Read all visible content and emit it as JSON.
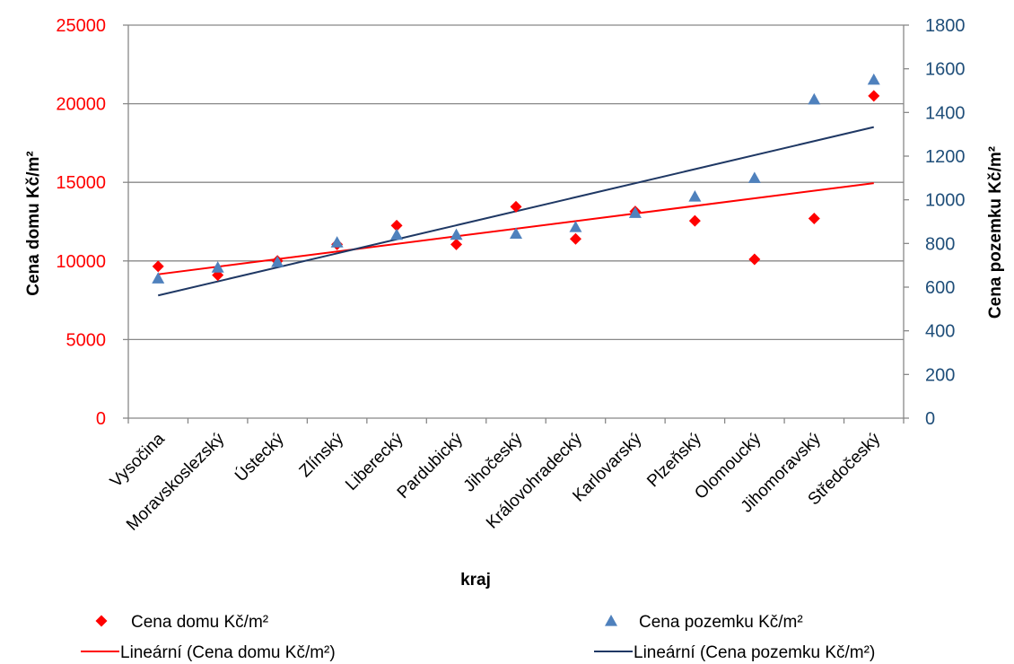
{
  "chart_data": {
    "type": "scatter",
    "categories": [
      "Vysočina",
      "Moravskoslezský",
      "Ústecký",
      "Zlínský",
      "Liberecký",
      "Pardubický",
      "Jihočeský",
      "Královohradecký",
      "Karlovarský",
      "Plzeňský",
      "Olomoucký",
      "Jihomoravský",
      "Středočeský"
    ],
    "xlabel": "kraj",
    "ylabel_left": "Cena domu Kč/m²",
    "ylabel_right": "Cena pozemku Kč/m²",
    "ylim_left": [
      0,
      25000
    ],
    "ylim_right": [
      0,
      1800
    ],
    "yticks_left": [
      0,
      5000,
      10000,
      15000,
      20000,
      25000
    ],
    "yticks_right": [
      0,
      200,
      400,
      600,
      800,
      1000,
      1200,
      1400,
      1600,
      1800
    ],
    "grid": true,
    "legend_position": "bottom",
    "series": [
      {
        "name": "Cena domu Kč/m²",
        "axis": "left",
        "marker": "diamond",
        "color": "#ff0000",
        "values": [
          9650,
          9100,
          10000,
          11050,
          12250,
          11050,
          13450,
          11400,
          13150,
          12550,
          10100,
          12700,
          20500
        ]
      },
      {
        "name": "Cena pozemku Kč/m²",
        "axis": "right",
        "marker": "triangle",
        "color": "#4f81bd",
        "values": [
          640,
          690,
          715,
          805,
          840,
          840,
          845,
          875,
          940,
          1015,
          1100,
          1460,
          1550
        ]
      }
    ],
    "trendlines": [
      {
        "name": "Lineární (Cena domu Kč/m²)",
        "axis": "left",
        "color": "#ff0000",
        "start": 9150,
        "end": 14950
      },
      {
        "name": "Lineární (Cena pozemku Kč/m²)",
        "axis": "right",
        "color": "#1f3864",
        "start": 562,
        "end": 1333
      }
    ]
  }
}
